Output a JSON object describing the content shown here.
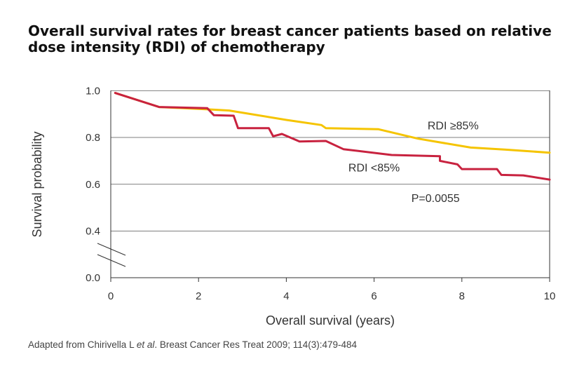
{
  "title_line1": "Overall survival rates for breast cancer patients based on relative",
  "title_line2": "dose intensity (RDI) of chemotherapy",
  "source": {
    "prefix": "Adapted from Chirivella L ",
    "italic": "et al",
    "suffix": ". Breast Cancer Res Treat 2009; 114(3):479-484"
  },
  "colors": {
    "rdi_high": "#f5c400",
    "rdi_low": "#c8223f",
    "axis": "#333333",
    "grid": "#555555"
  },
  "chart_data": {
    "type": "line",
    "title": "Overall survival rates for breast cancer patients based on relative dose intensity (RDI) of chemotherapy",
    "xlabel": "Overall survival (years)",
    "ylabel": "Survival probability",
    "xlim": [
      0,
      10
    ],
    "ylim": [
      0,
      1.0
    ],
    "x_ticks": [
      "0",
      "2",
      "4",
      "6",
      "8",
      "10"
    ],
    "y_ticks": [
      "0.0",
      "0.4",
      "0.6",
      "0.8",
      "1.0"
    ],
    "y_axis_break": true,
    "grid": "horizontal",
    "series": [
      {
        "name": "RDI ≥85%",
        "color": "#f5c400",
        "x": [
          0.1,
          1.1,
          2.2,
          2.7,
          4.0,
          4.8,
          4.9,
          6.1,
          7.0,
          8.2,
          9.0,
          10.0
        ],
        "y": [
          0.99,
          0.93,
          0.92,
          0.915,
          0.875,
          0.853,
          0.84,
          0.835,
          0.795,
          0.757,
          0.748,
          0.735
        ]
      },
      {
        "name": "RDI <85%",
        "color": "#c8223f",
        "x": [
          0.1,
          1.1,
          2.2,
          2.35,
          2.8,
          2.9,
          3.6,
          3.7,
          3.9,
          4.3,
          4.9,
          5.3,
          6.4,
          7.5,
          7.5,
          7.9,
          8.0,
          8.8,
          8.9,
          9.4,
          10.0
        ],
        "y": [
          0.99,
          0.93,
          0.925,
          0.895,
          0.893,
          0.84,
          0.84,
          0.805,
          0.815,
          0.783,
          0.785,
          0.75,
          0.725,
          0.72,
          0.7,
          0.685,
          0.665,
          0.665,
          0.64,
          0.638,
          0.62
        ]
      }
    ],
    "annotations": [
      {
        "text": "RDI ≥85%",
        "x": 7.8,
        "y": 0.835
      },
      {
        "text": "RDI <85%",
        "x": 6.0,
        "y": 0.655
      },
      {
        "text": "P=0.0055",
        "x": 7.4,
        "y": 0.525
      }
    ]
  }
}
